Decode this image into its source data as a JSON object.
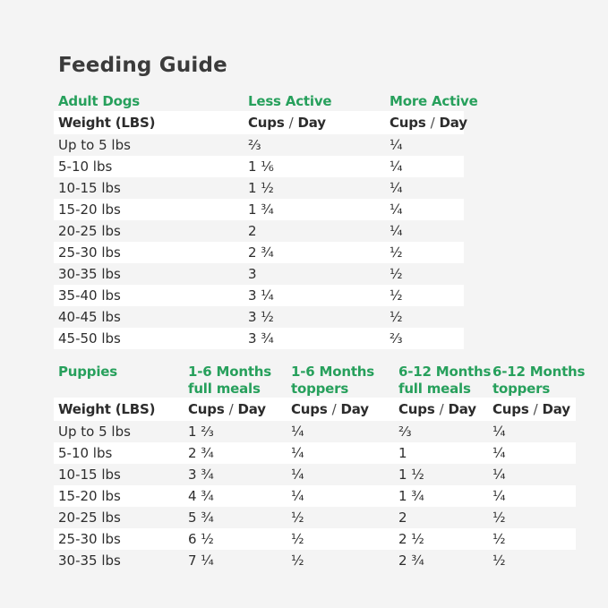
{
  "page": {
    "title": "Feeding Guide",
    "background_color": "#f4f4f4",
    "accent_green": "#27a05c",
    "row_stripe_color": "#ffffff"
  },
  "labels": {
    "cups": "Cups",
    "slash": "/",
    "day": "Day"
  },
  "adult_table": {
    "section_label": "Adult Dogs",
    "column_headers": [
      {
        "line1": "Less Active",
        "line2": ""
      },
      {
        "line1": "More Active",
        "line2": ""
      }
    ],
    "weight_header": "Weight (LBS)",
    "rows": [
      {
        "weight": "Up to 5 lbs",
        "less_active": "⅔",
        "more_active": "¼"
      },
      {
        "weight": "5-10 lbs",
        "less_active": "1 ⅙",
        "more_active": "¼"
      },
      {
        "weight": "10-15 lbs",
        "less_active": "1 ½",
        "more_active": "¼"
      },
      {
        "weight": "15-20 lbs",
        "less_active": "1 ¾",
        "more_active": "¼"
      },
      {
        "weight": "20-25 lbs",
        "less_active": "2",
        "more_active": "¼"
      },
      {
        "weight": "25-30 lbs",
        "less_active": "2 ¾",
        "more_active": "½"
      },
      {
        "weight": "30-35 lbs",
        "less_active": "3",
        "more_active": "½"
      },
      {
        "weight": "35-40 lbs",
        "less_active": "3 ¼",
        "more_active": "½"
      },
      {
        "weight": "40-45 lbs",
        "less_active": "3 ½",
        "more_active": "½"
      },
      {
        "weight": "45-50 lbs",
        "less_active": "3 ¾",
        "more_active": "⅔"
      }
    ]
  },
  "puppies_table": {
    "section_label": "Puppies",
    "column_headers": [
      {
        "line1": "1-6 Months",
        "line2": "full meals"
      },
      {
        "line1": "1-6 Months",
        "line2": "toppers"
      },
      {
        "line1": "6-12 Months",
        "line2": "full meals"
      },
      {
        "line1": "6-12 Months",
        "line2": "toppers"
      }
    ],
    "weight_header": "Weight (LBS)",
    "rows": [
      {
        "weight": "Up to 5 lbs",
        "m16_full": "1 ⅔",
        "m16_top": "¼",
        "m612_full": "⅔",
        "m612_top": "¼"
      },
      {
        "weight": "5-10 lbs",
        "m16_full": "2 ¾",
        "m16_top": "¼",
        "m612_full": "1",
        "m612_top": "¼"
      },
      {
        "weight": "10-15 lbs",
        "m16_full": "3 ¾",
        "m16_top": "¼",
        "m612_full": "1 ½",
        "m612_top": "¼"
      },
      {
        "weight": "15-20 lbs",
        "m16_full": "4 ¾",
        "m16_top": "¼",
        "m612_full": "1 ¾",
        "m612_top": "¼"
      },
      {
        "weight": "20-25 lbs",
        "m16_full": "5 ¾",
        "m16_top": "½",
        "m612_full": "2",
        "m612_top": "½"
      },
      {
        "weight": "25-30 lbs",
        "m16_full": "6 ½",
        "m16_top": "½",
        "m612_full": "2 ½",
        "m612_top": "½"
      },
      {
        "weight": "30-35 lbs",
        "m16_full": "7 ¼",
        "m16_top": "½",
        "m612_full": "2 ¾",
        "m612_top": "½"
      }
    ]
  }
}
